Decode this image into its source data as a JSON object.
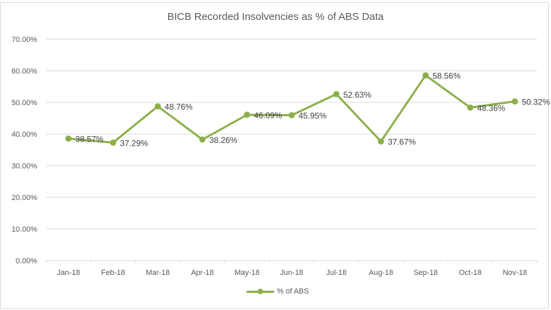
{
  "chart_data": {
    "type": "line",
    "title": "BICB Recorded Insolvencies as % of ABS  Data",
    "xlabel": "",
    "ylabel": "",
    "categories": [
      "Jan-18",
      "Feb-18",
      "Mar-18",
      "Apr-18",
      "May-18",
      "Jun-18",
      "Jul-18",
      "Aug-18",
      "Sep-18",
      "Oct-18",
      "Nov-18"
    ],
    "series": [
      {
        "name": "% of ABS",
        "color": "#8cb04a",
        "values": [
          38.57,
          37.29,
          48.76,
          38.26,
          46.09,
          45.95,
          52.63,
          37.67,
          58.56,
          48.36,
          50.32
        ],
        "labels": [
          "38.57%",
          "37.29%",
          "48.76%",
          "38.26%",
          "46.09%",
          "45.95%",
          "52.63%",
          "37.67%",
          "58.56%",
          "48.36%",
          "50.32%"
        ]
      }
    ],
    "ylim": [
      0,
      70
    ],
    "yticks": [
      "0.00%",
      "10.00%",
      "20.00%",
      "30.00%",
      "40.00%",
      "50.00%",
      "60.00%",
      "70.00%"
    ],
    "grid": true,
    "legend_position": "bottom"
  },
  "legend": {
    "label": "% of ABS"
  }
}
